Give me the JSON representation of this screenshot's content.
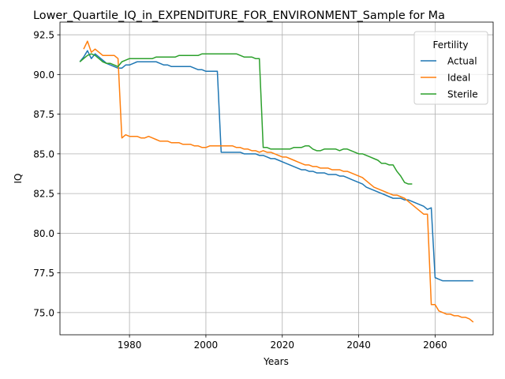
{
  "chart_data": {
    "type": "line",
    "title": "Lower_Quartile_IQ_in_EXPENDITURE_FOR_ENVIRONMENT_Sample for Ma",
    "xlabel": "Years",
    "ylabel": "IQ",
    "xlim": [
      1961.8,
      2075.2
    ],
    "ylim": [
      73.6,
      93.3
    ],
    "xticks": [
      1980,
      2000,
      2020,
      2040,
      2060
    ],
    "xtick_labels": [
      "1980",
      "2000",
      "2020",
      "2040",
      "2060"
    ],
    "yticks": [
      75.0,
      77.5,
      80.0,
      82.5,
      85.0,
      87.5,
      90.0,
      92.5
    ],
    "ytick_labels": [
      "75.0",
      "77.5",
      "80.0",
      "82.5",
      "85.0",
      "87.5",
      "90.0",
      "92.5"
    ],
    "grid": true,
    "legend": {
      "title": "Fertility",
      "placement": "top-right"
    },
    "series": [
      {
        "name": "Actual",
        "color": "#1f77b4",
        "x": [
          1967,
          1968,
          1969,
          1970,
          1971,
          1972,
          1973,
          1974,
          1975,
          1976,
          1977,
          1978,
          1979,
          1980,
          1981,
          1982,
          1983,
          1984,
          1985,
          1986,
          1987,
          1988,
          1989,
          1990,
          1991,
          1992,
          1993,
          1994,
          1995,
          1996,
          1997,
          1998,
          1999,
          2000,
          2001,
          2002,
          2003,
          2004,
          2005,
          2006,
          2007,
          2008,
          2009,
          2010,
          2011,
          2012,
          2013,
          2014,
          2015,
          2016,
          2017,
          2018,
          2019,
          2020,
          2021,
          2022,
          2023,
          2024,
          2025,
          2026,
          2027,
          2028,
          2029,
          2030,
          2031,
          2032,
          2033,
          2034,
          2035,
          2036,
          2037,
          2038,
          2039,
          2040,
          2041,
          2042,
          2043,
          2044,
          2045,
          2046,
          2047,
          2048,
          2049,
          2050,
          2051,
          2052,
          2053,
          2054,
          2055,
          2056,
          2057,
          2058,
          2059,
          2060,
          2061,
          2062,
          2063,
          2064,
          2065,
          2066,
          2067,
          2068,
          2069,
          2070
        ],
        "values": [
          90.8,
          91.1,
          91.5,
          91.0,
          91.3,
          91.1,
          90.9,
          90.7,
          90.6,
          90.5,
          90.4,
          90.4,
          90.6,
          90.6,
          90.7,
          90.8,
          90.8,
          90.8,
          90.8,
          90.8,
          90.8,
          90.7,
          90.6,
          90.6,
          90.5,
          90.5,
          90.5,
          90.5,
          90.5,
          90.5,
          90.4,
          90.3,
          90.3,
          90.2,
          90.2,
          90.2,
          90.2,
          85.1,
          85.1,
          85.1,
          85.1,
          85.1,
          85.1,
          85.0,
          85.0,
          85.0,
          85.0,
          84.9,
          84.9,
          84.8,
          84.7,
          84.7,
          84.6,
          84.5,
          84.4,
          84.3,
          84.2,
          84.1,
          84.0,
          84.0,
          83.9,
          83.9,
          83.8,
          83.8,
          83.8,
          83.7,
          83.7,
          83.7,
          83.6,
          83.6,
          83.5,
          83.4,
          83.3,
          83.2,
          83.1,
          82.9,
          82.8,
          82.7,
          82.6,
          82.5,
          82.4,
          82.3,
          82.2,
          82.2,
          82.2,
          82.1,
          82.1,
          82.0,
          81.9,
          81.8,
          81.7,
          81.5,
          81.6,
          77.2,
          77.1,
          77.0,
          77.0,
          77.0,
          77.0,
          77.0,
          77.0,
          77.0,
          77.0,
          77.0
        ]
      },
      {
        "name": "Ideal",
        "color": "#ff7f0e",
        "x": [
          1968,
          1969,
          1970,
          1971,
          1972,
          1973,
          1974,
          1975,
          1976,
          1977,
          1978,
          1979,
          1980,
          1981,
          1982,
          1983,
          1984,
          1985,
          1986,
          1987,
          1988,
          1989,
          1990,
          1991,
          1992,
          1993,
          1994,
          1995,
          1996,
          1997,
          1998,
          1999,
          2000,
          2001,
          2002,
          2003,
          2004,
          2005,
          2006,
          2007,
          2008,
          2009,
          2010,
          2011,
          2012,
          2013,
          2014,
          2015,
          2016,
          2017,
          2018,
          2019,
          2020,
          2021,
          2022,
          2023,
          2024,
          2025,
          2026,
          2027,
          2028,
          2029,
          2030,
          2031,
          2032,
          2033,
          2034,
          2035,
          2036,
          2037,
          2038,
          2039,
          2040,
          2041,
          2042,
          2043,
          2044,
          2045,
          2046,
          2047,
          2048,
          2049,
          2050,
          2051,
          2052,
          2053,
          2054,
          2055,
          2056,
          2057,
          2058,
          2059,
          2060,
          2061,
          2062,
          2063,
          2064,
          2065,
          2066,
          2067,
          2068,
          2069,
          2070
        ],
        "values": [
          91.6,
          92.1,
          91.4,
          91.6,
          91.4,
          91.2,
          91.2,
          91.2,
          91.2,
          91.0,
          86.0,
          86.2,
          86.1,
          86.1,
          86.1,
          86.0,
          86.0,
          86.1,
          86.0,
          85.9,
          85.8,
          85.8,
          85.8,
          85.7,
          85.7,
          85.7,
          85.6,
          85.6,
          85.6,
          85.5,
          85.5,
          85.4,
          85.4,
          85.5,
          85.5,
          85.5,
          85.5,
          85.5,
          85.5,
          85.5,
          85.4,
          85.4,
          85.3,
          85.3,
          85.2,
          85.2,
          85.1,
          85.2,
          85.1,
          85.1,
          85.0,
          84.9,
          84.8,
          84.8,
          84.7,
          84.6,
          84.5,
          84.4,
          84.3,
          84.3,
          84.2,
          84.2,
          84.1,
          84.1,
          84.1,
          84.0,
          84.0,
          84.0,
          83.9,
          83.9,
          83.8,
          83.7,
          83.6,
          83.5,
          83.3,
          83.1,
          82.9,
          82.8,
          82.7,
          82.6,
          82.5,
          82.4,
          82.4,
          82.3,
          82.2,
          82.0,
          81.8,
          81.6,
          81.4,
          81.2,
          81.2,
          75.5,
          75.5,
          75.1,
          75.0,
          74.9,
          74.9,
          74.8,
          74.8,
          74.7,
          74.7,
          74.6,
          74.4
        ]
      },
      {
        "name": "Sterile",
        "color": "#2ca02c",
        "x": [
          1967,
          1968,
          1969,
          1970,
          1971,
          1972,
          1973,
          1974,
          1975,
          1976,
          1977,
          1978,
          1979,
          1980,
          1981,
          1982,
          1983,
          1984,
          1985,
          1986,
          1987,
          1988,
          1989,
          1990,
          1991,
          1992,
          1993,
          1994,
          1995,
          1996,
          1997,
          1998,
          1999,
          2000,
          2001,
          2002,
          2003,
          2004,
          2005,
          2006,
          2007,
          2008,
          2009,
          2010,
          2011,
          2012,
          2013,
          2014,
          2015,
          2016,
          2017,
          2018,
          2019,
          2020,
          2021,
          2022,
          2023,
          2024,
          2025,
          2026,
          2027,
          2028,
          2029,
          2030,
          2031,
          2032,
          2033,
          2034,
          2035,
          2036,
          2037,
          2038,
          2039,
          2040,
          2041,
          2042,
          2043,
          2044,
          2045,
          2046,
          2047,
          2048,
          2049,
          2050,
          2051,
          2052,
          2053,
          2054
        ],
        "values": [
          90.8,
          91.0,
          91.2,
          91.3,
          91.2,
          91.0,
          90.8,
          90.7,
          90.7,
          90.6,
          90.5,
          90.8,
          90.9,
          91.0,
          91.0,
          91.0,
          91.0,
          91.0,
          91.0,
          91.0,
          91.1,
          91.1,
          91.1,
          91.1,
          91.1,
          91.1,
          91.2,
          91.2,
          91.2,
          91.2,
          91.2,
          91.2,
          91.3,
          91.3,
          91.3,
          91.3,
          91.3,
          91.3,
          91.3,
          91.3,
          91.3,
          91.3,
          91.2,
          91.1,
          91.1,
          91.1,
          91.0,
          91.0,
          85.4,
          85.4,
          85.3,
          85.3,
          85.3,
          85.3,
          85.3,
          85.3,
          85.4,
          85.4,
          85.4,
          85.5,
          85.5,
          85.3,
          85.2,
          85.2,
          85.3,
          85.3,
          85.3,
          85.3,
          85.2,
          85.3,
          85.3,
          85.2,
          85.1,
          85.0,
          85.0,
          84.9,
          84.8,
          84.7,
          84.6,
          84.4,
          84.4,
          84.3,
          84.3,
          83.9,
          83.6,
          83.2,
          83.1,
          83.1
        ]
      }
    ]
  }
}
